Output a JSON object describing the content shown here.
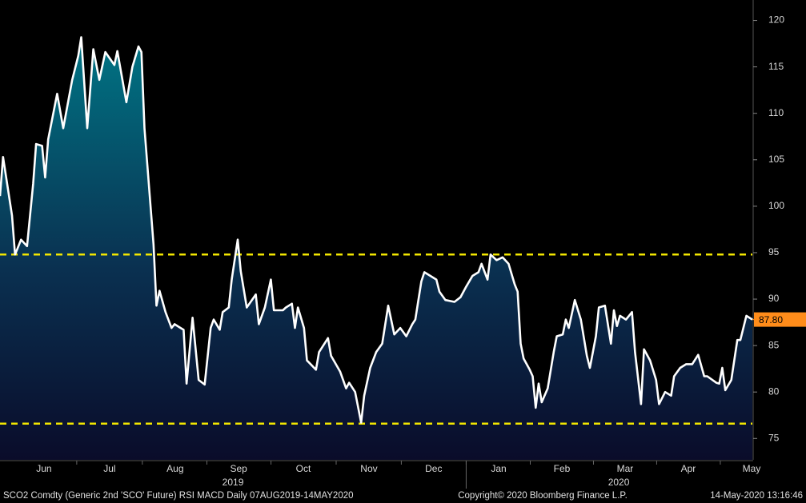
{
  "chart_data": {
    "type": "line",
    "title": "SCO2 Comdty (Generic 2nd 'SCO' Future) RSI MACD  Daily 07AUG2019-14MAY2020",
    "copyright": "Copyright© 2020 Bloomberg Finance L.P.",
    "timestamp": "14-May-2020 13:16:46",
    "x": [
      0,
      1,
      4,
      5,
      7,
      9,
      11,
      12,
      14,
      15,
      16,
      19,
      21,
      24,
      26,
      27,
      29,
      31,
      33,
      35,
      38,
      39,
      42,
      44,
      46,
      47,
      48,
      51,
      52,
      53,
      55,
      57,
      58,
      60,
      61,
      62,
      64,
      66,
      68,
      70,
      71,
      73,
      74,
      76,
      77,
      79,
      80,
      82,
      85,
      86,
      88,
      90,
      91,
      94,
      95,
      97,
      98,
      99,
      101,
      102,
      105,
      106,
      109,
      110,
      113,
      115,
      116,
      118,
      120,
      121,
      123,
      125,
      127,
      129,
      131,
      133,
      135,
      137,
      138,
      140,
      141,
      143,
      145,
      146,
      148,
      151,
      153,
      155,
      157,
      159,
      160,
      162,
      163,
      165,
      167,
      169,
      171,
      172,
      173,
      174,
      176,
      177,
      178,
      179,
      180,
      182,
      184,
      185,
      187,
      188,
      189,
      191,
      193,
      195,
      196,
      198,
      199,
      201,
      203,
      204,
      205,
      206,
      208,
      210,
      211,
      213,
      214,
      216,
      218,
      219,
      221,
      223,
      224,
      226,
      228,
      230,
      232,
      234,
      235,
      238,
      239,
      240,
      241,
      243,
      245,
      246,
      248,
      250
    ],
    "series": [
      {
        "name": "SCO2 Comdty",
        "color": "#ffffff",
        "values": [
          101.1,
          105.3,
          99,
          94.8,
          96.4,
          95.7,
          102.4,
          106.7,
          106.5,
          103.1,
          107.2,
          112.1,
          108.4,
          113.6,
          116.2,
          118.2,
          108.4,
          116.9,
          113.6,
          116.6,
          115.2,
          116.7,
          111.2,
          115,
          117.2,
          116.6,
          108.4,
          95.9,
          89.3,
          90.9,
          88.6,
          86.9,
          87.3,
          86.9,
          86.7,
          80.9,
          88,
          81.3,
          80.8,
          86.9,
          87.8,
          86.7,
          88.6,
          89.1,
          92.1,
          96.4,
          93,
          89.1,
          90.5,
          87.3,
          89.1,
          92.1,
          88.8,
          88.8,
          89.1,
          89.5,
          86.9,
          89.1,
          86.9,
          83.4,
          82.4,
          84.3,
          85.8,
          83.9,
          82.2,
          80.4,
          81,
          80,
          76.7,
          79.6,
          82.6,
          84.3,
          85.2,
          89.3,
          86.2,
          86.9,
          86,
          87.3,
          87.8,
          91.9,
          92.9,
          92.5,
          92.1,
          90.8,
          89.9,
          89.7,
          90.2,
          91.4,
          92.5,
          92.9,
          93.8,
          92.1,
          94.8,
          94.2,
          94.5,
          93.8,
          91.6,
          90.8,
          85.2,
          83.6,
          82.4,
          81.7,
          78.3,
          80.9,
          78.9,
          80.4,
          84.3,
          86,
          86.2,
          87.8,
          86.9,
          89.9,
          87.8,
          83.9,
          82.6,
          86,
          89.1,
          89.3,
          85.2,
          88.8,
          87.1,
          88.2,
          87.8,
          88.6,
          84.3,
          78.7,
          84.6,
          83.4,
          81.3,
          78.7,
          80,
          79.6,
          81.7,
          82.6,
          83,
          83,
          84,
          81.7,
          81.7,
          81,
          80.9,
          82.6,
          80.2,
          81.3,
          85.6,
          85.6,
          88.2,
          87.8
        ],
        "last_value_label": "87.80"
      }
    ],
    "hlines": [
      {
        "value": 94.8,
        "color": "#f2e600"
      },
      {
        "value": 76.6,
        "color": "#f2e600"
      }
    ],
    "xlim": [
      0,
      250
    ],
    "xticks": [
      {
        "value": 14.6,
        "label": "Jun"
      },
      {
        "value": 36.4,
        "label": "Jul"
      },
      {
        "value": 58.2,
        "label": "Aug"
      },
      {
        "value": 79.3,
        "label": "Sep"
      },
      {
        "value": 100.8,
        "label": "Oct"
      },
      {
        "value": 122.6,
        "label": "Nov"
      },
      {
        "value": 144.1,
        "label": "Dec"
      },
      {
        "value": 165.7,
        "label": "Jan"
      },
      {
        "value": 186.7,
        "label": "Feb"
      },
      {
        "value": 207.7,
        "label": "Mar"
      },
      {
        "value": 228.7,
        "label": "Apr"
      },
      {
        "value": 250,
        "label": "May"
      }
    ],
    "year_labels": [
      {
        "value": 77.4,
        "label": "2019"
      },
      {
        "value": 205.6,
        "label": "2020"
      }
    ],
    "ylim": [
      72.7,
      122.2
    ],
    "yticks": [
      75,
      80,
      85,
      90,
      95,
      100,
      105,
      110,
      115,
      120
    ]
  }
}
